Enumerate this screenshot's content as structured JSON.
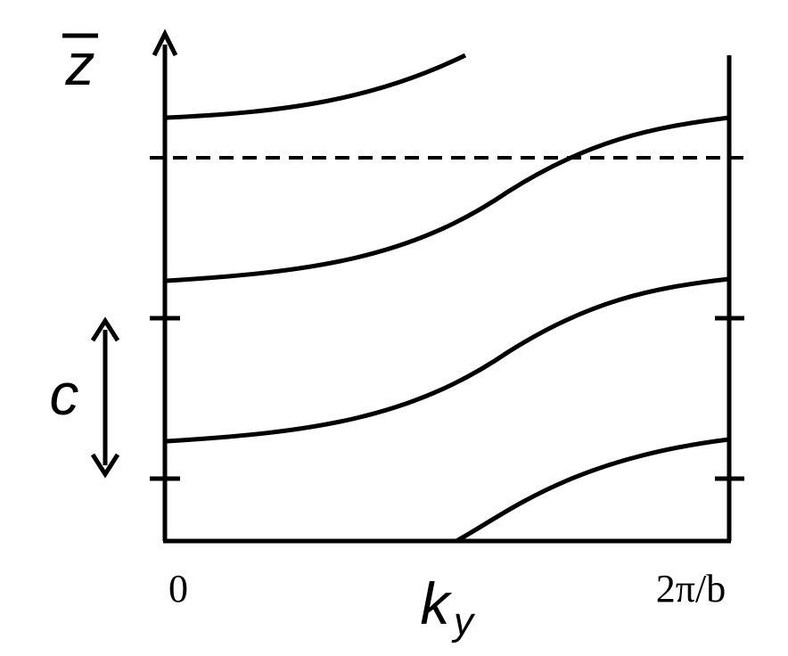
{
  "vertical_axis_label": "z",
  "period_label": "c",
  "x_start_label": "0",
  "x_axis_label": {
    "base": "k",
    "subscript": "y"
  },
  "x_end_label": "2π/b"
}
